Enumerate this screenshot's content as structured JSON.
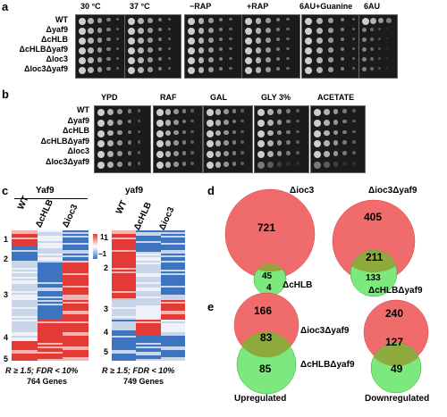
{
  "panel_a": {
    "label": "a",
    "conditions": [
      "30 °C",
      "37 °C",
      "−RAP",
      "+RAP",
      "6AU+Guanine",
      "6AU"
    ],
    "strains": [
      "WT",
      "Δyaf9",
      "ΔcHLB",
      "ΔcHLBΔyaf9",
      "Δloc3",
      "Δloc3Δyaf9"
    ]
  },
  "panel_b": {
    "label": "b",
    "conditions": [
      "YPD",
      "RAF",
      "GAL",
      "GLY 3%",
      "ACETATE"
    ],
    "strains": [
      "WT",
      "Δyaf9",
      "ΔcHLB",
      "ΔcHLBΔyaf9",
      "Δloc3",
      "Δloc3Δyaf9"
    ]
  },
  "panel_c": {
    "label": "c",
    "left": {
      "title": "Yaf9",
      "columns": [
        "WT",
        "ΔcHLB",
        "Δioc3"
      ],
      "clusters": [
        "1",
        "2",
        "3",
        "4",
        "5"
      ],
      "caption1": "R ≥ 1.5; FDR < 10%",
      "caption2": "764 Genes"
    },
    "right": {
      "title": "yaf9",
      "columns": [
        "WT",
        "ΔcHLB",
        "Δioc3"
      ],
      "clusters": [
        "1",
        "2",
        "3",
        "4",
        "5"
      ],
      "caption1": "R ≥ 1.5; FDR < 10%",
      "caption2": "749 Genes"
    },
    "scale_max": "1",
    "scale_min": "−1"
  },
  "panel_d": {
    "label": "d",
    "left": {
      "big_label": "Δioc3",
      "big_value": "721",
      "overlap": "45",
      "small_value": "4",
      "small_label": "ΔcHLB"
    },
    "right": {
      "big_label": "Δioc3Δyaf9",
      "big_value": "405",
      "overlap": "211",
      "small_value": "133",
      "small_label": "ΔcHLBΔyaf9"
    }
  },
  "panel_e": {
    "label": "e",
    "left": {
      "top_value": "166",
      "overlap": "83",
      "bottom_value": "85",
      "caption": "Upregulated"
    },
    "right": {
      "top_value": "240",
      "overlap": "127",
      "bottom_value": "49",
      "caption": "Downregulated"
    },
    "top_label": "Δioc3Δyaf9",
    "bottom_label": "ΔcHLBΔyaf9"
  },
  "colors": {
    "red": "#f06b6b",
    "green": "#7de87d",
    "overlap": "#9aa03a",
    "heat_red": "#e33a35",
    "heat_blue": "#3c74c0"
  }
}
